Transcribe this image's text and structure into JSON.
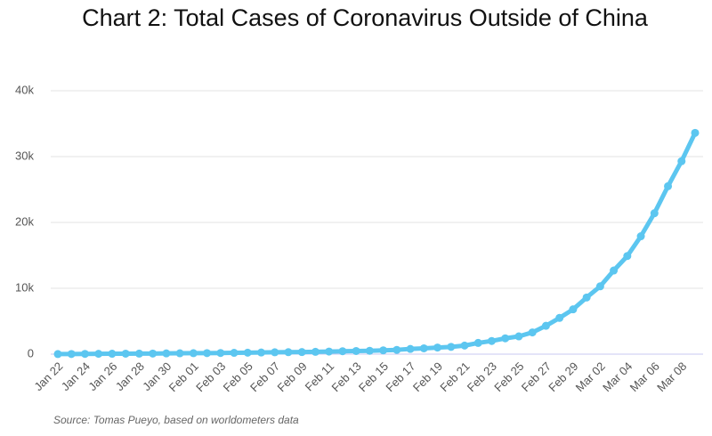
{
  "chart_data": {
    "type": "line",
    "title": "Chart 2: Total Cases of Coronavirus Outside of China",
    "source": "Source: Tomas Pueyo, based on worldometers data",
    "categories": [
      "Jan 22",
      null,
      "Jan 24",
      null,
      "Jan 26",
      null,
      "Jan 28",
      null,
      "Jan 30",
      null,
      "Feb 01",
      null,
      "Feb 03",
      null,
      "Feb 05",
      null,
      "Feb 07",
      null,
      "Feb 09",
      null,
      "Feb 11",
      null,
      "Feb 13",
      null,
      "Feb 15",
      null,
      "Feb 17",
      null,
      "Feb 19",
      null,
      "Feb 21",
      null,
      "Feb 23",
      null,
      "Feb 25",
      null,
      "Feb 27",
      null,
      "Feb 29",
      null,
      "Mar 02",
      null,
      "Mar 04",
      null,
      "Mar 06",
      null,
      "Mar 08",
      null
    ],
    "values": [
      10,
      20,
      40,
      50,
      60,
      70,
      80,
      90,
      110,
      130,
      150,
      160,
      170,
      200,
      220,
      250,
      280,
      300,
      320,
      350,
      390,
      440,
      480,
      510,
      580,
      650,
      790,
      880,
      1000,
      1100,
      1300,
      1700,
      2000,
      2400,
      2700,
      3300,
      4300,
      5500,
      6800,
      8600,
      10300,
      12700,
      14900,
      17900,
      21400,
      25500,
      29300,
      33600
    ],
    "color": "#5cc6f0",
    "ylim": [
      0,
      40000
    ],
    "yticks": [
      0,
      {
        "value": 10000,
        "label": "10k"
      },
      {
        "value": 20000,
        "label": "20k"
      },
      {
        "value": 30000,
        "label": "30k"
      },
      {
        "value": 40000,
        "label": "40k"
      }
    ],
    "grid": true
  }
}
